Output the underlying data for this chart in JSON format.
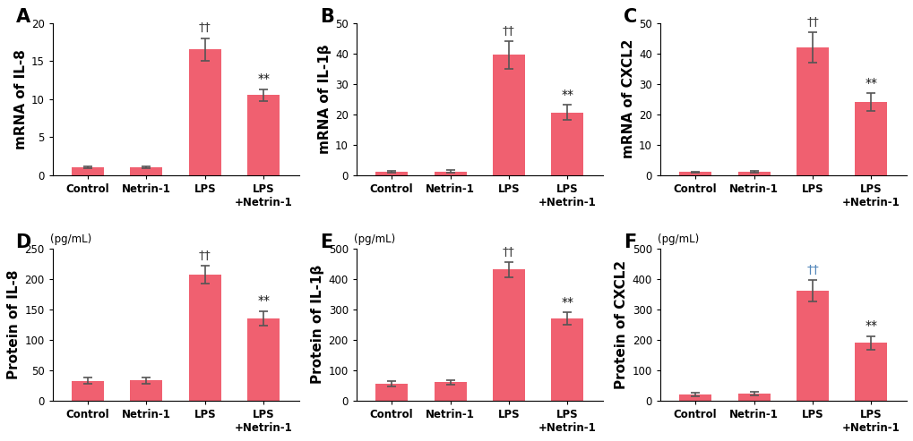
{
  "panels": [
    {
      "label": "A",
      "ylabel": "mRNA of IL-8",
      "unit": "",
      "ylim": [
        0,
        20
      ],
      "yticks": [
        0,
        5,
        10,
        15,
        20
      ],
      "values": [
        1.0,
        1.0,
        16.5,
        10.5
      ],
      "errors": [
        0.15,
        0.1,
        1.5,
        0.8
      ],
      "annotations": [
        "",
        "",
        "††",
        "**"
      ],
      "ann_color": [
        "",
        "",
        "#444444",
        "#111111"
      ],
      "xticklabels": [
        "Control",
        "Netrin-1",
        "LPS",
        "LPS\n+Netrin-1"
      ]
    },
    {
      "label": "B",
      "ylabel": "mRNA of IL-1β",
      "unit": "",
      "ylim": [
        0,
        50
      ],
      "yticks": [
        0,
        10,
        20,
        30,
        40,
        50
      ],
      "values": [
        1.0,
        1.2,
        39.5,
        20.5
      ],
      "errors": [
        0.3,
        0.5,
        4.5,
        2.5
      ],
      "annotations": [
        "",
        "",
        "††",
        "**"
      ],
      "ann_color": [
        "",
        "",
        "#444444",
        "#111111"
      ],
      "xticklabels": [
        "Control",
        "Netrin-1",
        "LPS",
        "LPS\n+Netrin-1"
      ]
    },
    {
      "label": "C",
      "ylabel": "mRNA of CXCL2",
      "unit": "",
      "ylim": [
        0,
        50
      ],
      "yticks": [
        0,
        10,
        20,
        30,
        40,
        50
      ],
      "values": [
        1.0,
        1.0,
        42.0,
        24.0
      ],
      "errors": [
        0.2,
        0.3,
        5.0,
        3.0
      ],
      "annotations": [
        "",
        "",
        "††",
        "**"
      ],
      "ann_color": [
        "",
        "",
        "#444444",
        "#111111"
      ],
      "xticklabels": [
        "Control",
        "Netrin-1",
        "LPS",
        "LPS\n+Netrin-1"
      ]
    },
    {
      "label": "D",
      "ylabel": "Protein of IL-8",
      "unit": "(pg/mL)",
      "ylim": [
        0,
        250
      ],
      "yticks": [
        0,
        50,
        100,
        150,
        200,
        250
      ],
      "values": [
        32.0,
        33.0,
        207.0,
        135.0
      ],
      "errors": [
        5.0,
        5.0,
        15.0,
        12.0
      ],
      "annotations": [
        "",
        "",
        "††",
        "**"
      ],
      "ann_color": [
        "",
        "",
        "#444444",
        "#111111"
      ],
      "xticklabels": [
        "Control",
        "Netrin-1",
        "LPS",
        "LPS\n+Netrin-1"
      ]
    },
    {
      "label": "E",
      "ylabel": "Protein of IL-1β",
      "unit": "(pg/mL)",
      "ylim": [
        0,
        500
      ],
      "yticks": [
        0,
        100,
        200,
        300,
        400,
        500
      ],
      "values": [
        55.0,
        60.0,
        430.0,
        270.0
      ],
      "errors": [
        8.0,
        8.0,
        25.0,
        20.0
      ],
      "annotations": [
        "",
        "",
        "††",
        "**"
      ],
      "ann_color": [
        "",
        "",
        "#444444",
        "#111111"
      ],
      "xticklabels": [
        "Control",
        "Netrin-1",
        "LPS",
        "LPS\n+Netrin-1"
      ]
    },
    {
      "label": "F",
      "ylabel": "Protein of CXCL2",
      "unit": "(pg/mL)",
      "ylim": [
        0,
        500
      ],
      "yticks": [
        0,
        100,
        200,
        300,
        400,
        500
      ],
      "values": [
        20.0,
        22.0,
        360.0,
        190.0
      ],
      "errors": [
        5.0,
        5.0,
        35.0,
        22.0
      ],
      "annotations": [
        "",
        "",
        "††",
        "**"
      ],
      "ann_color": [
        "",
        "",
        "#5588bb",
        "#111111"
      ],
      "xticklabels": [
        "Control",
        "Netrin-1",
        "LPS",
        "LPS\n+Netrin-1"
      ]
    }
  ],
  "bar_color": "#F06070",
  "error_color": "#555555",
  "background_color": "#ffffff",
  "ylabel_fontsize": 11,
  "tick_fontsize": 8.5,
  "ann_fontsize": 10,
  "panel_label_fontsize": 15
}
